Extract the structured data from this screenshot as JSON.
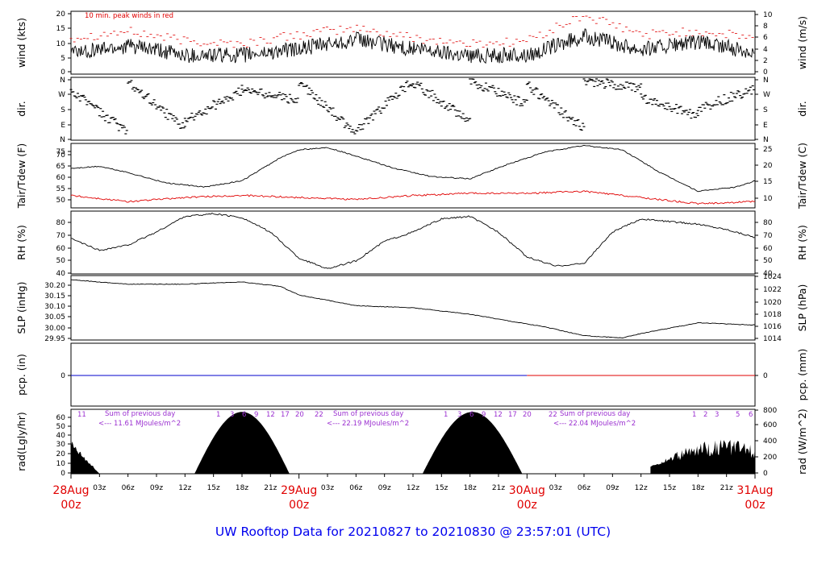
{
  "chart_data": [
    {
      "type": "line",
      "left_label": "wind (kts)",
      "right_label": "wind (m/s)",
      "annotation": "10 min. peak winds in red",
      "left_ticks": [
        "0",
        "5",
        "10",
        "15",
        "20"
      ],
      "right_ticks": [
        "0",
        "2",
        "4",
        "6",
        "8",
        "10"
      ],
      "ylim": [
        0,
        20
      ],
      "series": [
        {
          "name": "10 min. peak winds in red",
          "color": "#e00000",
          "x": [
            0,
            6,
            12,
            18,
            24,
            30,
            36,
            42,
            48,
            54,
            60,
            66,
            72
          ],
          "values": [
            11,
            13,
            10,
            9,
            12,
            14,
            11,
            9,
            10,
            18,
            12,
            13,
            11
          ]
        },
        {
          "color": "#000000",
          "x": [
            0,
            6,
            12,
            18,
            24,
            30,
            36,
            42,
            48,
            54,
            60,
            66,
            72
          ],
          "values": [
            7,
            9,
            6,
            6,
            8,
            11,
            8,
            6,
            6,
            12,
            8,
            10,
            7
          ]
        }
      ]
    },
    {
      "type": "scatter",
      "left_label": "dir.",
      "right_label": "dir.",
      "left_ticks": [
        "N",
        "W",
        "S",
        "E",
        "N"
      ],
      "right_ticks": [
        "N",
        "W",
        "S",
        "E",
        "N"
      ]
    },
    {
      "type": "line",
      "left_label": "Tair/Tdew (F)",
      "right_label": "Tair/Tdew (C)",
      "left_ticks": [
        "50",
        "55",
        "60",
        "65",
        "70",
        "75"
      ],
      "right_ticks": [
        "10",
        "15",
        "20",
        "25"
      ],
      "ylim": [
        47,
        78
      ],
      "series": [
        {
          "color": "#000000",
          "x": [
            0,
            3,
            6,
            10,
            14,
            18,
            22,
            24,
            27,
            30,
            34,
            38,
            42,
            46,
            50,
            54,
            58,
            62,
            66,
            70,
            72
          ],
          "values": [
            66,
            67,
            64,
            59,
            57,
            60,
            71,
            75,
            76,
            72,
            66,
            62,
            61,
            68,
            74,
            77,
            75,
            64,
            55,
            57,
            60
          ]
        },
        {
          "color": "#e00000",
          "x": [
            0,
            6,
            12,
            18,
            24,
            30,
            36,
            42,
            48,
            54,
            60,
            66,
            72
          ],
          "values": [
            53,
            50,
            52,
            53,
            52,
            51,
            53,
            54,
            54,
            55,
            52,
            49,
            50
          ]
        }
      ]
    },
    {
      "type": "line",
      "left_label": "RH (%)",
      "right_label": "RH (%)",
      "left_ticks": [
        "40",
        "50",
        "60",
        "70",
        "80"
      ],
      "right_ticks": [
        "40",
        "50",
        "60",
        "70",
        "80"
      ],
      "ylim": [
        40,
        88
      ],
      "series": [
        {
          "color": "#000000",
          "x": [
            0,
            3,
            6,
            9,
            12,
            15,
            18,
            21,
            24,
            27,
            30,
            33,
            36,
            39,
            42,
            45,
            48,
            51,
            54,
            57,
            60,
            63,
            66,
            69,
            72
          ],
          "values": [
            67,
            58,
            62,
            72,
            84,
            86,
            83,
            72,
            52,
            44,
            50,
            65,
            72,
            82,
            84,
            72,
            53,
            46,
            48,
            72,
            82,
            80,
            78,
            74,
            68
          ]
        }
      ]
    },
    {
      "type": "line",
      "left_label": "SLP (inHg)",
      "right_label": "SLP (hPa)",
      "left_ticks": [
        "29.95",
        "30.00",
        "30.05",
        "30.10",
        "30.15",
        "30.20"
      ],
      "right_ticks": [
        "1014",
        "1016",
        "1018",
        "1020",
        "1022",
        "1024"
      ],
      "ylim": [
        29.94,
        30.24
      ],
      "series": [
        {
          "color": "#000000",
          "x": [
            0,
            6,
            12,
            18,
            22,
            24,
            30,
            36,
            42,
            46,
            50,
            54,
            58,
            60,
            66,
            72
          ],
          "values": [
            30.22,
            30.2,
            30.2,
            30.21,
            30.19,
            30.15,
            30.1,
            30.09,
            30.06,
            30.03,
            30.0,
            29.96,
            29.95,
            29.97,
            30.02,
            30.01
          ]
        }
      ]
    },
    {
      "type": "line",
      "left_label": "pcp. (in)",
      "right_label": "pcp. (mm)",
      "left_ticks": [
        "0"
      ],
      "right_ticks": [
        "0"
      ],
      "series": [
        {
          "color": "#0000cc",
          "x": [
            0,
            48
          ],
          "values": [
            0,
            0
          ]
        },
        {
          "color": "#e00000",
          "x": [
            48,
            72
          ],
          "values": [
            0,
            0
          ]
        }
      ]
    },
    {
      "type": "area",
      "left_label": "rad(Lgly/hr)",
      "right_label": "rad (W/m^2)",
      "left_ticks": [
        "0",
        "10",
        "20",
        "30",
        "40",
        "50",
        "60"
      ],
      "right_ticks": [
        "0",
        "200",
        "400",
        "600",
        "800"
      ],
      "series": [
        {
          "color": "#000000",
          "x": [
            0,
            3,
            13,
            16,
            19,
            22,
            23,
            37,
            40,
            43,
            46,
            48,
            61,
            64,
            67,
            70,
            72
          ],
          "values": [
            35,
            0,
            0,
            40,
            70,
            40,
            0,
            0,
            40,
            70,
            40,
            0,
            0,
            20,
            50,
            25,
            18
          ]
        }
      ],
      "annotations": [
        {
          "text": "Sum of previous day",
          "day": 1
        },
        {
          "text": "<--- 11.61 MJoules/m^2",
          "day": 1
        },
        {
          "text": "Sum of previous day",
          "day": 2
        },
        {
          "text": "<--- 22.19 MJoules/m^2",
          "day": 2
        },
        {
          "text": "Sum of previous day",
          "day": 3
        },
        {
          "text": "<--- 22.04 MJoules/m^2",
          "day": 3
        }
      ],
      "hour_labels": [
        [
          "11"
        ],
        [
          "1",
          "3",
          "6",
          "9",
          "12",
          "17",
          "20",
          "22"
        ],
        [
          "1",
          "3",
          "6",
          "9",
          "12",
          "17",
          "20",
          "22"
        ],
        [
          "1",
          "2",
          "3",
          "5",
          "6"
        ]
      ]
    }
  ],
  "x_axis": {
    "small_ticks": [
      "03z",
      "06z",
      "09z",
      "12z",
      "15z",
      "18z",
      "21z",
      "03z",
      "06z",
      "09z",
      "12z",
      "15z",
      "18z",
      "21z",
      "03z",
      "06z",
      "09z",
      "12z",
      "15z",
      "18z",
      "21z"
    ],
    "day_labels": [
      {
        "top": "28Aug",
        "bottom": "00z"
      },
      {
        "top": "29Aug",
        "bottom": "00z"
      },
      {
        "top": "30Aug",
        "bottom": "00z"
      },
      {
        "top": "31Aug",
        "bottom": "00z"
      }
    ],
    "day_color": "#e00000"
  },
  "footer": "UW Rooftop Data for 20210827  to  20210830 @ 23:57:01  (UTC)"
}
